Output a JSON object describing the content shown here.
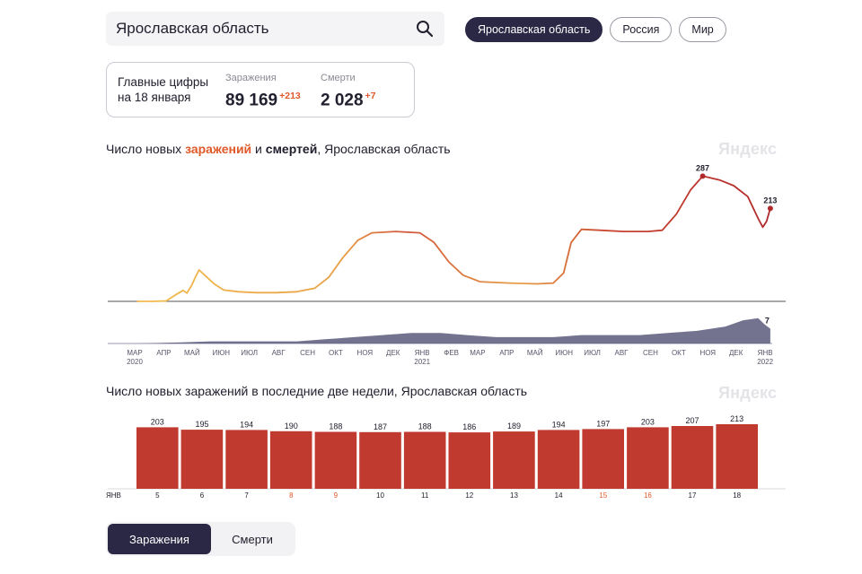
{
  "search": {
    "value": "Ярославская область"
  },
  "regions": [
    {
      "label": "Ярославская область",
      "active": true
    },
    {
      "label": "Россия",
      "active": false
    },
    {
      "label": "Мир",
      "active": false
    }
  ],
  "stats": {
    "heading_line1": "Главные цифры",
    "heading_line2": "на 18 января",
    "infections": {
      "label": "Заражения",
      "value": "89 169",
      "delta": "+213"
    },
    "deaths": {
      "label": "Смерти",
      "value": "2 028",
      "delta": "+7"
    }
  },
  "chart1": {
    "title_prefix": "Число новых ",
    "title_infections": "заражений",
    "title_mid": " и ",
    "title_deaths": "смертей",
    "title_suffix": ", Ярославская область",
    "watermark": "Яндекс"
  },
  "chart2": {
    "title": "Число новых заражений в последние две недели, Ярославская область",
    "watermark": "Яндекс"
  },
  "tabs": [
    {
      "label": "Заражения",
      "active": true
    },
    {
      "label": "Смерти",
      "active": false
    }
  ],
  "chart_data": [
    {
      "type": "line",
      "title": "Число новых заражений и смертей, Ярославская область",
      "series": [
        {
          "name": "заражений",
          "color_start": "#f2b84b",
          "color_end": "#b9302a",
          "points": [
            [
              "2020-03-15",
              0
            ],
            [
              "2020-04-01",
              0
            ],
            [
              "2020-04-15",
              1
            ],
            [
              "2020-04-25",
              15
            ],
            [
              "2020-05-03",
              25
            ],
            [
              "2020-05-07",
              19
            ],
            [
              "2020-05-12",
              36
            ],
            [
              "2020-05-16",
              55
            ],
            [
              "2020-05-20",
              72
            ],
            [
              "2020-05-26",
              60
            ],
            [
              "2020-06-05",
              40
            ],
            [
              "2020-06-15",
              26
            ],
            [
              "2020-07-01",
              22
            ],
            [
              "2020-07-20",
              20
            ],
            [
              "2020-08-10",
              20
            ],
            [
              "2020-09-01",
              22
            ],
            [
              "2020-09-20",
              30
            ],
            [
              "2020-10-05",
              55
            ],
            [
              "2020-10-20",
              100
            ],
            [
              "2020-11-05",
              140
            ],
            [
              "2020-11-20",
              157
            ],
            [
              "2020-12-15",
              160
            ],
            [
              "2021-01-10",
              157
            ],
            [
              "2021-01-25",
              135
            ],
            [
              "2021-02-10",
              90
            ],
            [
              "2021-02-25",
              60
            ],
            [
              "2021-03-15",
              45
            ],
            [
              "2021-04-15",
              42
            ],
            [
              "2021-05-15",
              40
            ],
            [
              "2021-06-01",
              42
            ],
            [
              "2021-06-12",
              65
            ],
            [
              "2021-06-20",
              135
            ],
            [
              "2021-07-01",
              165
            ],
            [
              "2021-07-20",
              163
            ],
            [
              "2021-08-15",
              160
            ],
            [
              "2021-09-10",
              160
            ],
            [
              "2021-09-25",
              163
            ],
            [
              "2021-10-10",
              200
            ],
            [
              "2021-10-25",
              255
            ],
            [
              "2021-11-07",
              287
            ],
            [
              "2021-11-25",
              278
            ],
            [
              "2021-12-10",
              265
            ],
            [
              "2021-12-25",
              240
            ],
            [
              "2022-01-05",
              190
            ],
            [
              "2022-01-10",
              170
            ],
            [
              "2022-01-14",
              183
            ],
            [
              "2022-01-18",
              213
            ]
          ],
          "labels": [
            {
              "date": "2021-11-07",
              "value": 287,
              "text": "287"
            },
            {
              "date": "2022-01-18",
              "value": 213,
              "text": "213"
            }
          ]
        },
        {
          "name": "смертей",
          "color": "#5a5a7c",
          "points": [
            [
              "2020-03-15",
              0
            ],
            [
              "2020-05-01",
              0.5
            ],
            [
              "2020-06-01",
              1
            ],
            [
              "2020-07-01",
              1
            ],
            [
              "2020-08-01",
              1
            ],
            [
              "2020-09-01",
              1
            ],
            [
              "2020-10-01",
              2
            ],
            [
              "2020-11-01",
              3
            ],
            [
              "2020-12-01",
              4
            ],
            [
              "2021-01-01",
              5
            ],
            [
              "2021-02-01",
              5
            ],
            [
              "2021-03-01",
              4
            ],
            [
              "2021-04-01",
              3
            ],
            [
              "2021-05-01",
              3
            ],
            [
              "2021-06-01",
              3
            ],
            [
              "2021-07-01",
              4
            ],
            [
              "2021-08-01",
              4
            ],
            [
              "2021-09-01",
              4
            ],
            [
              "2021-10-01",
              5
            ],
            [
              "2021-11-01",
              6
            ],
            [
              "2021-12-01",
              8
            ],
            [
              "2021-12-20",
              11
            ],
            [
              "2022-01-05",
              12
            ],
            [
              "2022-01-12",
              9
            ],
            [
              "2022-01-18",
              7
            ]
          ],
          "labels": [
            {
              "date": "2022-01-18",
              "value": 7,
              "text": "7"
            }
          ]
        }
      ],
      "x_ticks": [
        {
          "date": "2020-03-01",
          "label": "МАР",
          "year": "2020"
        },
        {
          "date": "2020-04-01",
          "label": "АПР"
        },
        {
          "date": "2020-05-01",
          "label": "МАЙ"
        },
        {
          "date": "2020-06-01",
          "label": "ИЮН"
        },
        {
          "date": "2020-07-01",
          "label": "ИЮЛ"
        },
        {
          "date": "2020-08-01",
          "label": "АВГ"
        },
        {
          "date": "2020-09-01",
          "label": "СЕН"
        },
        {
          "date": "2020-10-01",
          "label": "ОКТ"
        },
        {
          "date": "2020-11-01",
          "label": "НОЯ"
        },
        {
          "date": "2020-12-01",
          "label": "ДЕК"
        },
        {
          "date": "2021-01-01",
          "label": "ЯНВ",
          "year": "2021"
        },
        {
          "date": "2021-02-01",
          "label": "ФЕВ"
        },
        {
          "date": "2021-03-01",
          "label": "МАР"
        },
        {
          "date": "2021-04-01",
          "label": "АПР"
        },
        {
          "date": "2021-05-01",
          "label": "МАЙ"
        },
        {
          "date": "2021-06-01",
          "label": "ИЮН"
        },
        {
          "date": "2021-07-01",
          "label": "ИЮЛ"
        },
        {
          "date": "2021-08-01",
          "label": "АВГ"
        },
        {
          "date": "2021-09-01",
          "label": "СЕН"
        },
        {
          "date": "2021-10-01",
          "label": "ОКТ"
        },
        {
          "date": "2021-11-01",
          "label": "НОЯ"
        },
        {
          "date": "2021-12-01",
          "label": "ДЕК"
        },
        {
          "date": "2022-01-01",
          "label": "ЯНВ",
          "year": "2022"
        }
      ],
      "x_range": [
        "2020-03-01",
        "2022-01-20"
      ],
      "y_range_infections": [
        0,
        300
      ],
      "y_range_deaths": [
        0,
        14
      ]
    },
    {
      "type": "bar",
      "title": "Число новых заражений в последние две недели, Ярославская область",
      "month_label": "ЯНВ",
      "categories": [
        "5",
        "6",
        "7",
        "8",
        "9",
        "10",
        "11",
        "12",
        "13",
        "14",
        "15",
        "16",
        "17",
        "18"
      ],
      "weekend": [
        false,
        false,
        false,
        true,
        true,
        false,
        false,
        false,
        false,
        false,
        true,
        true,
        false,
        false
      ],
      "values": [
        203,
        195,
        194,
        190,
        188,
        187,
        188,
        186,
        189,
        194,
        197,
        203,
        207,
        213
      ],
      "color": "#c13a2f",
      "ylim": [
        0,
        220
      ]
    }
  ]
}
